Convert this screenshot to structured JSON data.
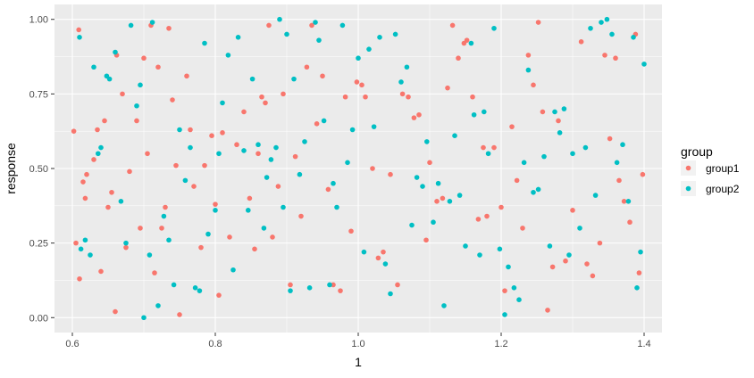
{
  "chart_data": {
    "type": "scatter",
    "title": "",
    "xlabel": "1",
    "ylabel": "response",
    "xlim": [
      0.575,
      1.425
    ],
    "ylim": [
      -0.05,
      1.05
    ],
    "x_ticks": [
      0.6,
      0.8,
      1.0,
      1.2,
      1.4
    ],
    "x_tick_labels": [
      "0.6",
      "0.8",
      "1.0",
      "1.2",
      "1.4"
    ],
    "y_ticks": [
      0.0,
      0.25,
      0.5,
      0.75,
      1.0
    ],
    "y_tick_labels": [
      "0.00",
      "0.25",
      "0.50",
      "0.75",
      "1.00"
    ],
    "grid": true,
    "panel_background": "#EBEBEB",
    "gridline_color": "#FFFFFF",
    "legend": {
      "title": "group",
      "placement": "right"
    },
    "series": [
      {
        "name": "group1",
        "color": "#F8766D",
        "points": [
          [
            0.602,
            0.625
          ],
          [
            0.609,
            0.965
          ],
          [
            0.615,
            0.455
          ],
          [
            0.618,
            0.4
          ],
          [
            0.62,
            0.48
          ],
          [
            0.605,
            0.25
          ],
          [
            0.61,
            0.13
          ],
          [
            0.63,
            0.53
          ],
          [
            0.635,
            0.63
          ],
          [
            0.64,
            0.155
          ],
          [
            0.645,
            0.66
          ],
          [
            0.65,
            0.37
          ],
          [
            0.655,
            0.42
          ],
          [
            0.66,
            0.02
          ],
          [
            0.662,
            0.88
          ],
          [
            0.67,
            0.75
          ],
          [
            0.675,
            0.235
          ],
          [
            0.68,
            0.49
          ],
          [
            0.69,
            0.66
          ],
          [
            0.695,
            0.3
          ],
          [
            0.7,
            0.87
          ],
          [
            0.705,
            0.55
          ],
          [
            0.71,
            0.98
          ],
          [
            0.715,
            0.15
          ],
          [
            0.72,
            0.84
          ],
          [
            0.725,
            0.3
          ],
          [
            0.73,
            0.37
          ],
          [
            0.735,
            0.97
          ],
          [
            0.74,
            0.73
          ],
          [
            0.745,
            0.51
          ],
          [
            0.75,
            0.01
          ],
          [
            0.76,
            0.81
          ],
          [
            0.765,
            0.63
          ],
          [
            0.77,
            0.44
          ],
          [
            0.78,
            0.235
          ],
          [
            0.785,
            0.51
          ],
          [
            0.795,
            0.61
          ],
          [
            0.8,
            0.38
          ],
          [
            0.805,
            0.075
          ],
          [
            0.81,
            0.62
          ],
          [
            0.82,
            0.27
          ],
          [
            0.83,
            0.58
          ],
          [
            0.84,
            0.69
          ],
          [
            0.848,
            0.4
          ],
          [
            0.855,
            0.23
          ],
          [
            0.86,
            0.55
          ],
          [
            0.865,
            0.74
          ],
          [
            0.87,
            0.72
          ],
          [
            0.875,
            0.98
          ],
          [
            0.88,
            0.27
          ],
          [
            0.888,
            0.44
          ],
          [
            0.895,
            0.75
          ],
          [
            0.905,
            0.11
          ],
          [
            0.912,
            0.54
          ],
          [
            0.92,
            0.34
          ],
          [
            0.928,
            0.84
          ],
          [
            0.935,
            0.98
          ],
          [
            0.942,
            0.65
          ],
          [
            0.95,
            0.81
          ],
          [
            0.958,
            0.43
          ],
          [
            0.965,
            0.11
          ],
          [
            0.975,
            0.09
          ],
          [
            0.982,
            0.74
          ],
          [
            0.99,
            0.29
          ],
          [
            0.998,
            0.79
          ],
          [
            1.005,
            0.78
          ],
          [
            1.01,
            0.74
          ],
          [
            1.02,
            0.5
          ],
          [
            1.028,
            0.2
          ],
          [
            1.035,
            0.22
          ],
          [
            1.045,
            0.48
          ],
          [
            1.055,
            0.11
          ],
          [
            1.062,
            0.75
          ],
          [
            1.07,
            0.74
          ],
          [
            1.078,
            0.67
          ],
          [
            1.085,
            0.68
          ],
          [
            1.095,
            0.26
          ],
          [
            1.1,
            0.52
          ],
          [
            1.11,
            0.39
          ],
          [
            1.118,
            0.4
          ],
          [
            1.125,
            0.77
          ],
          [
            1.132,
            0.98
          ],
          [
            1.14,
            0.87
          ],
          [
            1.148,
            0.92
          ],
          [
            1.152,
            0.93
          ],
          [
            1.16,
            0.74
          ],
          [
            1.168,
            0.33
          ],
          [
            1.175,
            0.57
          ],
          [
            1.18,
            0.34
          ],
          [
            1.19,
            0.57
          ],
          [
            1.2,
            0.37
          ],
          [
            1.205,
            0.09
          ],
          [
            1.215,
            0.64
          ],
          [
            1.222,
            0.46
          ],
          [
            1.23,
            0.3
          ],
          [
            1.238,
            0.88
          ],
          [
            1.245,
            0.78
          ],
          [
            1.252,
            0.99
          ],
          [
            1.258,
            0.69
          ],
          [
            1.265,
            0.025
          ],
          [
            1.272,
            0.17
          ],
          [
            1.28,
            0.66
          ],
          [
            1.29,
            0.19
          ],
          [
            1.3,
            0.36
          ],
          [
            1.312,
            0.925
          ],
          [
            1.32,
            0.18
          ],
          [
            1.328,
            0.14
          ],
          [
            1.338,
            0.25
          ],
          [
            1.345,
            0.88
          ],
          [
            1.352,
            0.6
          ],
          [
            1.36,
            0.87
          ],
          [
            1.365,
            0.46
          ],
          [
            1.372,
            0.39
          ],
          [
            1.38,
            0.32
          ],
          [
            1.388,
            0.95
          ],
          [
            1.393,
            0.15
          ],
          [
            1.398,
            0.48
          ]
        ]
      },
      {
        "name": "group2",
        "color": "#00BFC4",
        "points": [
          [
            0.61,
            0.94
          ],
          [
            0.612,
            0.23
          ],
          [
            0.618,
            0.26
          ],
          [
            0.625,
            0.21
          ],
          [
            0.63,
            0.84
          ],
          [
            0.636,
            0.55
          ],
          [
            0.64,
            0.57
          ],
          [
            0.648,
            0.81
          ],
          [
            0.652,
            0.8
          ],
          [
            0.66,
            0.89
          ],
          [
            0.668,
            0.39
          ],
          [
            0.675,
            0.25
          ],
          [
            0.682,
            0.98
          ],
          [
            0.69,
            0.71
          ],
          [
            0.695,
            0.78
          ],
          [
            0.7,
            0.0
          ],
          [
            0.708,
            0.21
          ],
          [
            0.712,
            0.99
          ],
          [
            0.72,
            0.04
          ],
          [
            0.728,
            0.34
          ],
          [
            0.735,
            0.26
          ],
          [
            0.742,
            0.11
          ],
          [
            0.75,
            0.63
          ],
          [
            0.758,
            0.46
          ],
          [
            0.765,
            0.57
          ],
          [
            0.772,
            0.1
          ],
          [
            0.778,
            0.09
          ],
          [
            0.785,
            0.92
          ],
          [
            0.79,
            0.28
          ],
          [
            0.8,
            0.36
          ],
          [
            0.805,
            0.55
          ],
          [
            0.81,
            0.72
          ],
          [
            0.818,
            0.88
          ],
          [
            0.825,
            0.16
          ],
          [
            0.832,
            0.94
          ],
          [
            0.84,
            0.56
          ],
          [
            0.846,
            0.36
          ],
          [
            0.852,
            0.8
          ],
          [
            0.86,
            0.58
          ],
          [
            0.868,
            0.3
          ],
          [
            0.872,
            0.47
          ],
          [
            0.878,
            0.53
          ],
          [
            0.885,
            0.57
          ],
          [
            0.89,
            1.0
          ],
          [
            0.895,
            0.37
          ],
          [
            0.9,
            0.95
          ],
          [
            0.905,
            0.09
          ],
          [
            0.91,
            0.8
          ],
          [
            0.918,
            0.48
          ],
          [
            0.925,
            0.59
          ],
          [
            0.932,
            0.1
          ],
          [
            0.94,
            0.99
          ],
          [
            0.945,
            0.93
          ],
          [
            0.952,
            0.66
          ],
          [
            0.96,
            0.11
          ],
          [
            0.965,
            0.45
          ],
          [
            0.97,
            0.37
          ],
          [
            0.978,
            0.98
          ],
          [
            0.985,
            0.52
          ],
          [
            0.992,
            0.63
          ],
          [
            1.0,
            0.87
          ],
          [
            1.008,
            0.22
          ],
          [
            1.015,
            0.9
          ],
          [
            1.022,
            0.64
          ],
          [
            1.03,
            0.94
          ],
          [
            1.038,
            0.18
          ],
          [
            1.045,
            0.08
          ],
          [
            1.052,
            0.95
          ],
          [
            1.06,
            0.79
          ],
          [
            1.068,
            0.84
          ],
          [
            1.075,
            0.31
          ],
          [
            1.082,
            0.47
          ],
          [
            1.09,
            0.44
          ],
          [
            1.096,
            0.59
          ],
          [
            1.105,
            0.32
          ],
          [
            1.112,
            0.45
          ],
          [
            1.12,
            0.04
          ],
          [
            1.128,
            0.39
          ],
          [
            1.135,
            0.61
          ],
          [
            1.142,
            0.41
          ],
          [
            1.15,
            0.24
          ],
          [
            1.158,
            0.92
          ],
          [
            1.162,
            0.68
          ],
          [
            1.17,
            0.21
          ],
          [
            1.176,
            0.69
          ],
          [
            1.182,
            0.55
          ],
          [
            1.19,
            0.97
          ],
          [
            1.198,
            0.23
          ],
          [
            1.205,
            0.01
          ],
          [
            1.21,
            0.17
          ],
          [
            1.218,
            0.1
          ],
          [
            1.225,
            0.06
          ],
          [
            1.232,
            0.52
          ],
          [
            1.238,
            0.83
          ],
          [
            1.245,
            0.42
          ],
          [
            1.252,
            0.43
          ],
          [
            1.26,
            0.54
          ],
          [
            1.268,
            0.24
          ],
          [
            1.275,
            0.69
          ],
          [
            1.282,
            0.62
          ],
          [
            1.288,
            0.7
          ],
          [
            1.295,
            0.21
          ],
          [
            1.3,
            0.55
          ],
          [
            1.31,
            0.3
          ],
          [
            1.318,
            0.57
          ],
          [
            1.325,
            0.97
          ],
          [
            1.332,
            0.41
          ],
          [
            1.34,
            0.99
          ],
          [
            1.348,
            1.0
          ],
          [
            1.355,
            0.95
          ],
          [
            1.362,
            0.52
          ],
          [
            1.37,
            0.58
          ],
          [
            1.378,
            0.39
          ],
          [
            1.385,
            0.94
          ],
          [
            1.39,
            0.1
          ],
          [
            1.395,
            0.22
          ],
          [
            1.4,
            0.85
          ]
        ]
      }
    ]
  }
}
